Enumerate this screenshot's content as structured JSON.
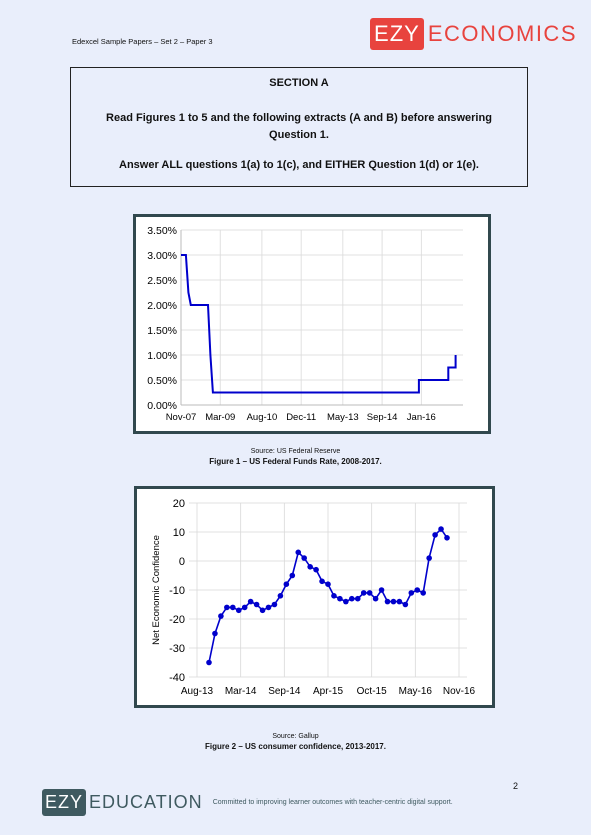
{
  "header": {
    "left_text": "Edexcel Sample Papers – Set 2 – Paper 3",
    "brand_box": "EZY",
    "brand_word": "ECONOMICS"
  },
  "section": {
    "title": "SECTION A",
    "line1": "Read Figures 1 to 5 and the following extracts (A and B) before answering Question 1.",
    "line2": "Answer ALL questions 1(a) to 1(c), and EITHER Question 1(d) or 1(e)."
  },
  "figure1": {
    "source": "Source: US Federal Reserve",
    "caption": "Figure 1 – US Federal Funds Rate, 2008-2017."
  },
  "figure2": {
    "source": "Source: Gallup",
    "caption": "Figure 2 – US consumer confidence, 2013-2017."
  },
  "footer": {
    "page_number": "2",
    "brand_box": "EZY",
    "brand_word": "EDUCATION",
    "tagline": "Committed to improving learner outcomes with teacher-centric digital support."
  },
  "colors": {
    "brand_red": "#e8433e",
    "brand_dark": "#3f5a60",
    "series_blue": "#0000cc",
    "frame": "#31484e"
  },
  "chart_data": [
    {
      "type": "line",
      "ylim": [
        0,
        3.5
      ],
      "yticks": [
        "0.00%",
        "0.50%",
        "1.00%",
        "1.50%",
        "2.00%",
        "2.50%",
        "3.00%",
        "3.50%"
      ],
      "xticks": [
        "Nov-07",
        "Mar-09",
        "Aug-10",
        "Dec-11",
        "May-13",
        "Sep-14",
        "Jan-16"
      ],
      "grid": true,
      "points": [
        [
          "2007-11",
          3.0
        ],
        [
          "2008-01",
          3.0
        ],
        [
          "2008-02",
          2.25
        ],
        [
          "2008-03",
          2.0
        ],
        [
          "2008-10",
          2.0
        ],
        [
          "2008-11",
          1.0
        ],
        [
          "2008-12",
          0.25
        ],
        [
          "2015-12",
          0.25
        ],
        [
          "2015-12",
          0.5
        ],
        [
          "2016-12",
          0.5
        ],
        [
          "2016-12",
          0.75
        ],
        [
          "2017-03",
          0.75
        ],
        [
          "2017-03",
          1.0
        ]
      ]
    },
    {
      "type": "line",
      "markers": true,
      "ylabel": "Net Economic Confidence",
      "ylim": [
        -40,
        20
      ],
      "yticks": [
        "-40",
        "-30",
        "-20",
        "-10",
        "0",
        "10",
        "20"
      ],
      "xticks": [
        "Aug-13",
        "Mar-14",
        "Sep-14",
        "Apr-15",
        "Oct-15",
        "May-16",
        "Nov-16"
      ],
      "grid": true,
      "values": [
        -35,
        -25,
        -19,
        -16,
        -16,
        -17,
        -16,
        -14,
        -15,
        -17,
        -16,
        -15,
        -12,
        -8,
        -5,
        3,
        1,
        -2,
        -3,
        -7,
        -8,
        -12,
        -13,
        -14,
        -13,
        -13,
        -11,
        -11,
        -13,
        -10,
        -14,
        -14,
        -14,
        -15,
        -11,
        -10,
        -11,
        1,
        9,
        11,
        8
      ]
    }
  ]
}
